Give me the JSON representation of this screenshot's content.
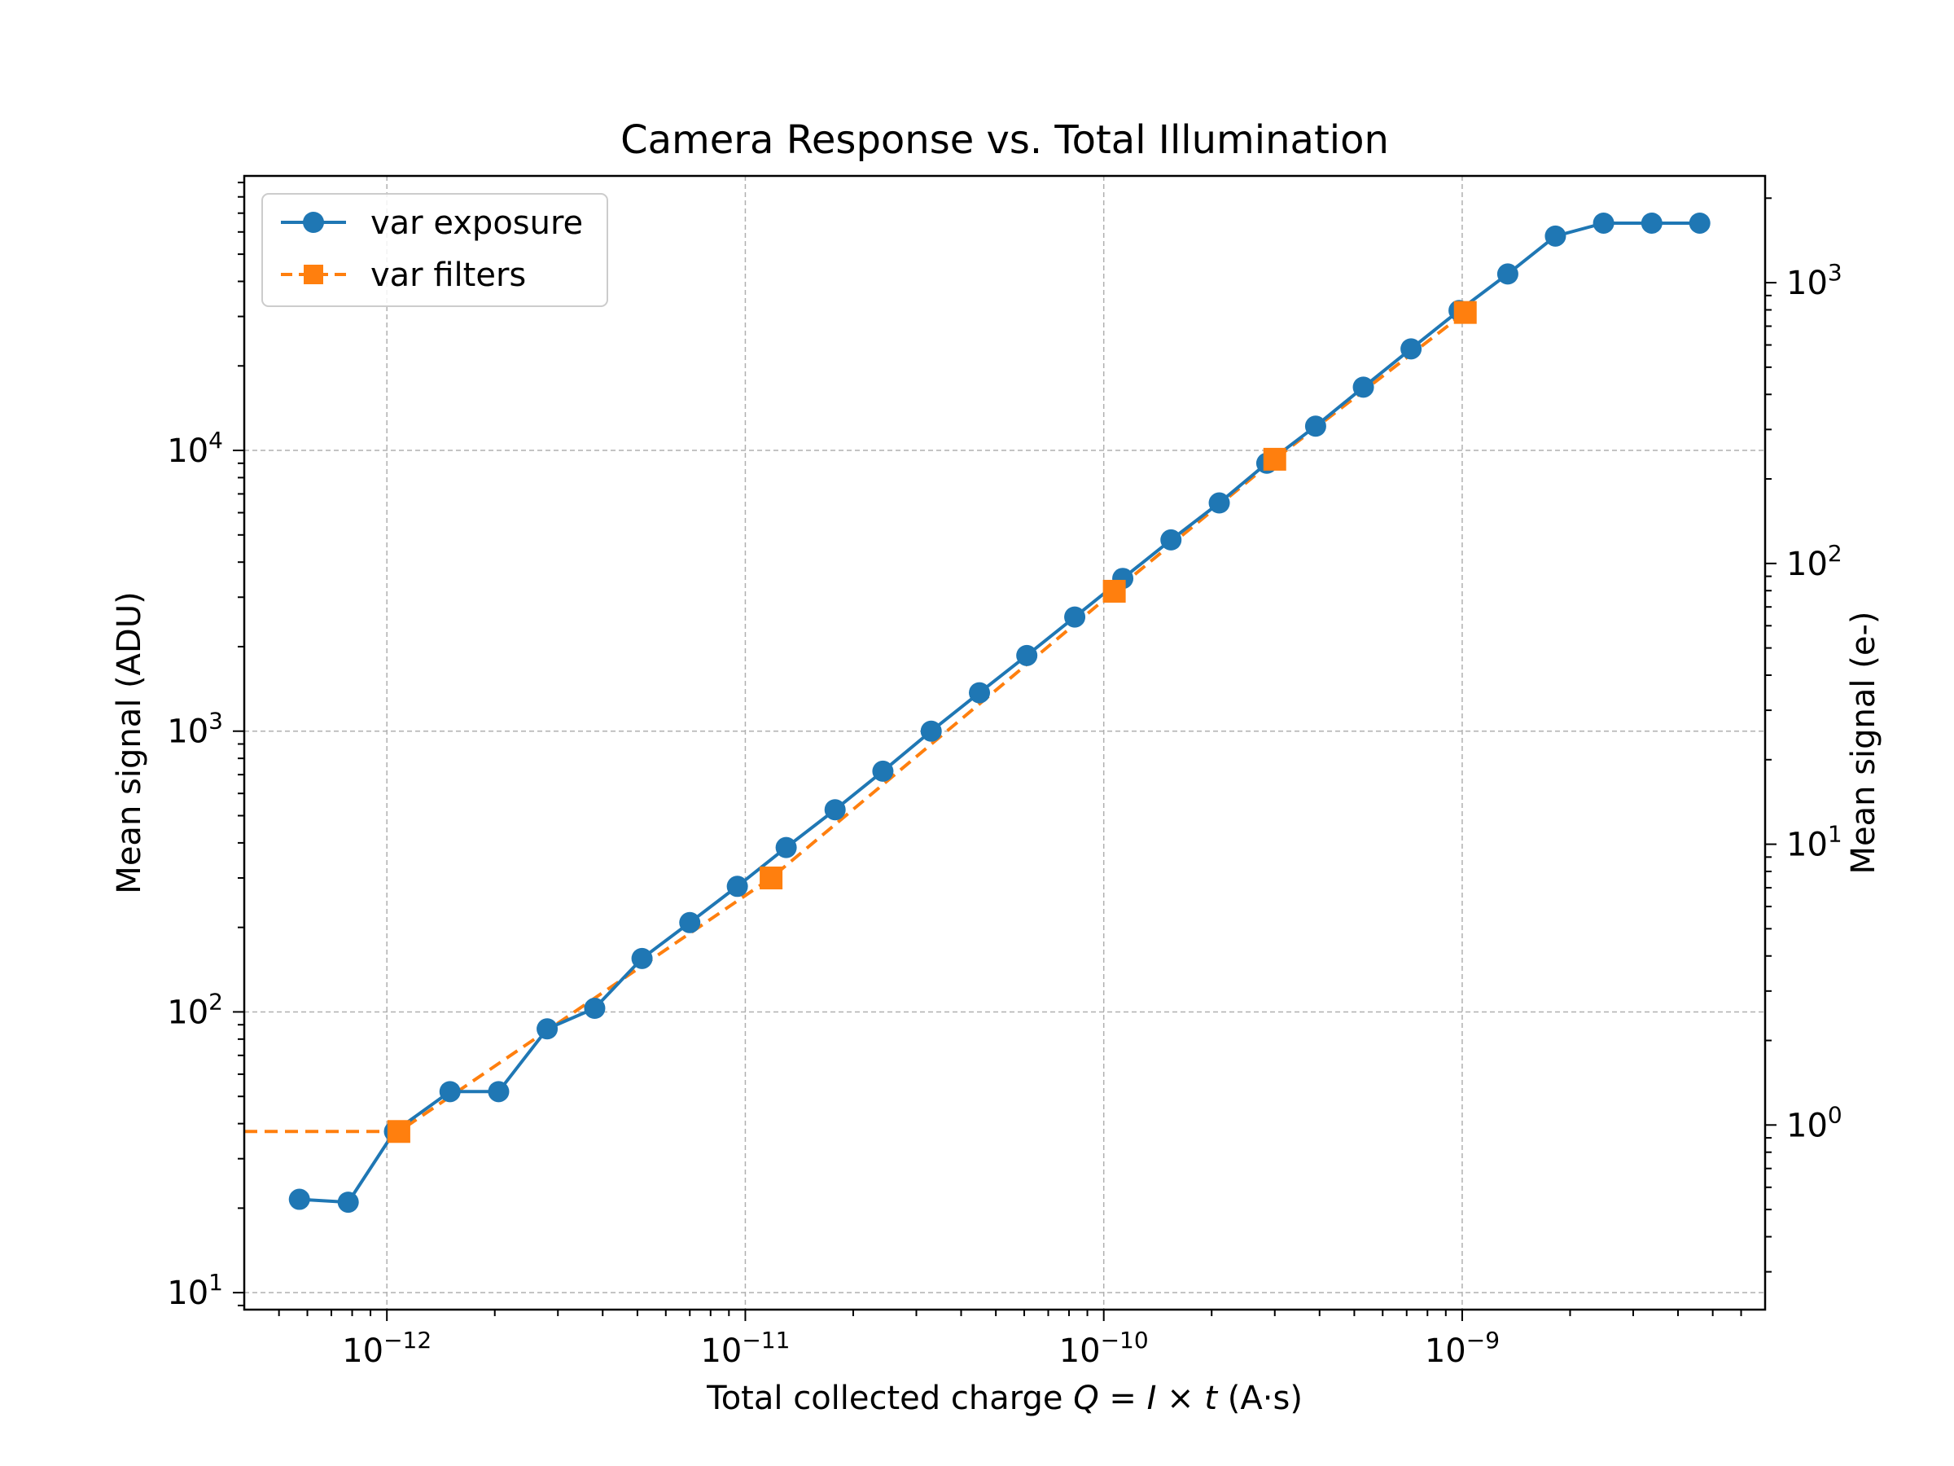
{
  "chart_data": {
    "type": "line",
    "title": "Camera Response vs. Total Illumination",
    "xlabel": "Total collected charge Q = I × t (A·s)",
    "ylabel": "Mean signal (ADU)",
    "ylabel_right": "Mean signal (e-)",
    "xscale": "log",
    "yscale": "log",
    "xlim": [
      4e-13,
      7e-09
    ],
    "ylim": [
      8.7,
      95000
    ],
    "ylim_right": [
      0.22,
      2400
    ],
    "x_ticks": [
      {
        "value": 1e-12,
        "base": "10",
        "exp": "−12"
      },
      {
        "value": 1e-11,
        "base": "10",
        "exp": "−11"
      },
      {
        "value": 1e-10,
        "base": "10",
        "exp": "−10"
      },
      {
        "value": 1e-09,
        "base": "10",
        "exp": "−9"
      }
    ],
    "y_ticks": [
      {
        "value": 10,
        "base": "10",
        "exp": "1"
      },
      {
        "value": 100,
        "base": "10",
        "exp": "2"
      },
      {
        "value": 1000,
        "base": "10",
        "exp": "3"
      },
      {
        "value": 10000,
        "base": "10",
        "exp": "4"
      }
    ],
    "y_ticks_right": [
      {
        "value": 1,
        "base": "10",
        "exp": "0"
      },
      {
        "value": 10,
        "base": "10",
        "exp": "1"
      },
      {
        "value": 100,
        "base": "10",
        "exp": "2"
      },
      {
        "value": 1000,
        "base": "10",
        "exp": "3"
      }
    ],
    "grid": true,
    "legend_position": "upper-left",
    "series": [
      {
        "name": "var exposure",
        "color": "#1f77b4",
        "style": "solid",
        "marker": "circle",
        "x": [
          5.7e-13,
          7.8e-13,
          1.05e-12,
          1.5e-12,
          2.05e-12,
          2.8e-12,
          3.8e-12,
          5.15e-12,
          7e-12,
          9.5e-12,
          1.3e-11,
          1.78e-11,
          2.42e-11,
          3.3e-11,
          4.5e-11,
          6.1e-11,
          8.3e-11,
          1.13e-10,
          1.54e-10,
          2.1e-10,
          2.85e-10,
          3.9e-10,
          5.3e-10,
          7.2e-10,
          9.8e-10,
          1.34e-09,
          1.82e-09,
          2.48e-09,
          3.38e-09,
          4.6e-09
        ],
        "y": [
          21.5,
          21,
          37.5,
          52,
          52,
          87,
          103,
          155,
          208,
          280,
          385,
          525,
          720,
          1000,
          1370,
          1860,
          2550,
          3500,
          4800,
          6500,
          9000,
          12200,
          16800,
          23000,
          31500,
          42500,
          58000,
          64500,
          64500,
          64500
        ]
      },
      {
        "name": "var filters",
        "color": "#ff7f0e",
        "style": "dashed",
        "marker": "square",
        "x": [
          4e-13,
          1.08e-12,
          1.18e-11,
          1.07e-10,
          3e-10,
          1.02e-09
        ],
        "y": [
          37.5,
          37.5,
          300,
          3150,
          9300,
          31000
        ],
        "markers_x": [
          1.08e-12,
          1.18e-11,
          1.07e-10,
          3e-10,
          1.02e-09
        ],
        "markers_y": [
          37.5,
          300,
          3150,
          9300,
          31000
        ]
      }
    ]
  }
}
